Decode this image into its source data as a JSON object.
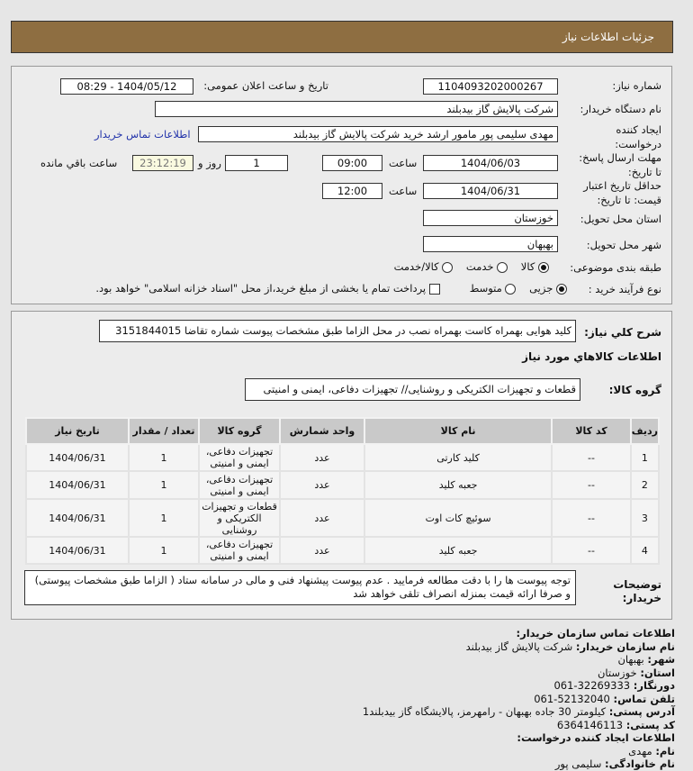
{
  "header": {
    "title": "جزئیات اطلاعات نیاز"
  },
  "form": {
    "need_number_label": "شماره نیاز:",
    "need_number": "1104093202000267",
    "announce_label": "تاریخ و ساعت اعلان عمومی:",
    "announce_value": "1404/05/12 - 08:29",
    "buyer_org_label": "نام دستگاه خریدار:",
    "buyer_org": "شرکت پالایش گاز بیدبلند",
    "creator_label": "ایجاد کننده درخواست:",
    "creator": "مهدی سلیمی پور مامور ارشد خرید شرکت پالایش گاز بیدبلند",
    "contact_link": "اطلاعات تماس خریدار",
    "deadline_label": "مهلت ارسال پاسخ: تا تاریخ:",
    "deadline_date": "1404/06/03",
    "time_label": "ساعت",
    "deadline_time": "09:00",
    "days": "1",
    "days_label": "روز و",
    "remaining": "23:12:19",
    "remaining_label": "ساعت باقي مانده",
    "validity_label": "حداقل تاریخ اعتبار قیمت: تا تاریخ:",
    "validity_date": "1404/06/31",
    "validity_time": "12:00",
    "province_label": "استان محل تحویل:",
    "province": "خوزستان",
    "city_label": "شهر محل تحویل:",
    "city": "بهبهان",
    "category_label": "طبقه بندی موضوعی:",
    "category_options": [
      "کالا",
      "خدمت",
      "کالا/خدمت"
    ],
    "category_selected": "کالا",
    "process_label": "نوع فرآیند خرید :",
    "process_options": [
      "جزیی",
      "متوسط"
    ],
    "process_selected": "جزیی",
    "payment_note": "پرداخت تمام یا بخشی از مبلغ خرید،از محل \"اسناد خزانه اسلامی\" خواهد بود."
  },
  "details": {
    "desc_label": "شرح کلي نياز:",
    "desc": "کلید هوایی بهمراه کاست بهمراه نصب در محل الزاما طبق مشخصات پیوست شماره تقاضا 3151844015",
    "goods_title": "اطلاعات کالاهاي مورد نياز",
    "group_label": "گروه کالا:",
    "group": "قطعات و تجهیزات الکتریکی و روشنایی// تجهیزات دفاعی، ایمنی و امنیتی",
    "columns": [
      "ردیف",
      "کد کالا",
      "نام کالا",
      "واحد شمارش",
      "گروه کالا",
      "تعداد / مقدار",
      "تاریخ نیاز"
    ],
    "rows": [
      [
        "1",
        "--",
        "کلید کارتی",
        "عدد",
        "تجهیزات دفاعی، ایمنی و امنیتی",
        "1",
        "1404/06/31"
      ],
      [
        "2",
        "--",
        "جعبه کلید",
        "عدد",
        "تجهیزات دفاعی، ایمنی و امنیتی",
        "1",
        "1404/06/31"
      ],
      [
        "3",
        "--",
        "سوئیچ کات اوت",
        "عدد",
        "قطعات و تجهیزات الکتریکی و روشنایی",
        "1",
        "1404/06/31"
      ],
      [
        "4",
        "--",
        "جعبه کلید",
        "عدد",
        "تجهیزات دفاعی، ایمنی و امنیتی",
        "1",
        "1404/06/31"
      ]
    ],
    "notes_label": "توضیحات خریدار:",
    "notes": "توجه پیوست ها را با دقت مطالعه فرمایید . عدم پیوست پیشنهاد فنی و مالی در سامانه ستاد ( الزاما طبق مشخصات پیوستی) و صرفا ارائه قیمت بمنزله انصراف تلقی خواهد شد"
  },
  "contact": {
    "title": "اطلاعات تماس سازمان خریدار:",
    "lines": [
      {
        "k": "نام سازمان خریدار:",
        "v": "شرکت پالایش گاز بیدبلند"
      },
      {
        "k": "شهر:",
        "v": "بهبهان"
      },
      {
        "k": "استان:",
        "v": "خوزستان"
      },
      {
        "k": "دورنگار:",
        "v": "061-32269333"
      },
      {
        "k": "تلفن تماس:",
        "v": "061-52132040"
      },
      {
        "k": "آدرس پستی:",
        "v": "کیلومتر 30 جاده بهبهان - رامهرمز، پالایشگاه گاز بیدبلند1"
      },
      {
        "k": "کد پستی:",
        "v": "6364146113"
      }
    ],
    "creator_title": "اطلاعات ایجاد کننده درخواست:",
    "creator_lines": [
      {
        "k": "نام:",
        "v": "مهدی"
      },
      {
        "k": "نام خانوادگی:",
        "v": "سلیمی پور"
      }
    ]
  }
}
